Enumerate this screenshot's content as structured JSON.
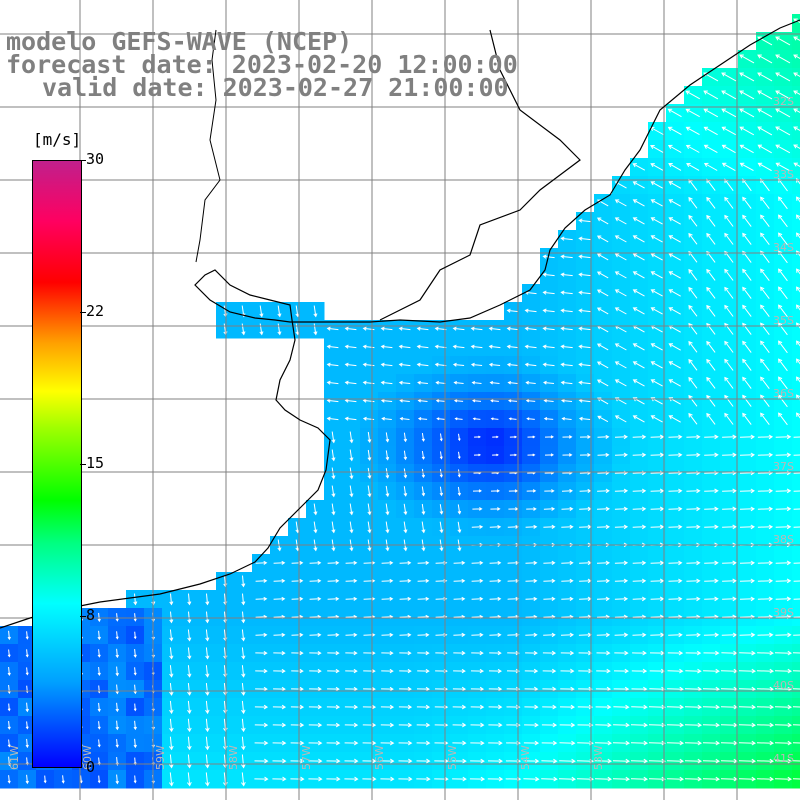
{
  "title": {
    "line1": "modelo GEFS-WAVE (NCEP)",
    "line2": "forecast date: 2023-02-20 12:00:00",
    "line3": "valid date: 2023-02-27 21:00:00"
  },
  "colorbar": {
    "unit": "[m/s]",
    "ticks": [
      "30",
      "22",
      "15",
      "8",
      "0"
    ],
    "tick_values": [
      30,
      22,
      15,
      8,
      0
    ],
    "colors": [
      "#0000ff",
      "#00a0ff",
      "#00ffff",
      "#00ff80",
      "#00ff00",
      "#a0ff00",
      "#ffff00",
      "#ffa000",
      "#ff0000",
      "#ff0060",
      "#c0208c"
    ]
  },
  "map": {
    "land_color": "#ffffff",
    "coastline_color": "#000000",
    "grid_color": "#808080",
    "arrow_color": "#ffffff",
    "lat_labels": [
      "32S",
      "33S",
      "34S",
      "35S",
      "36S",
      "37S",
      "38S",
      "39S",
      "40S",
      "41S"
    ],
    "lon_labels": [
      "61W",
      "60W",
      "59W",
      "58W",
      "57W",
      "56W",
      "55W",
      "54W",
      "53W"
    ],
    "wind_speed_range": [
      0,
      30
    ],
    "features": {
      "calm_center": "low wind speed core over the Rio de la Plata estuary",
      "stronger_wind": "south-east corner"
    }
  }
}
